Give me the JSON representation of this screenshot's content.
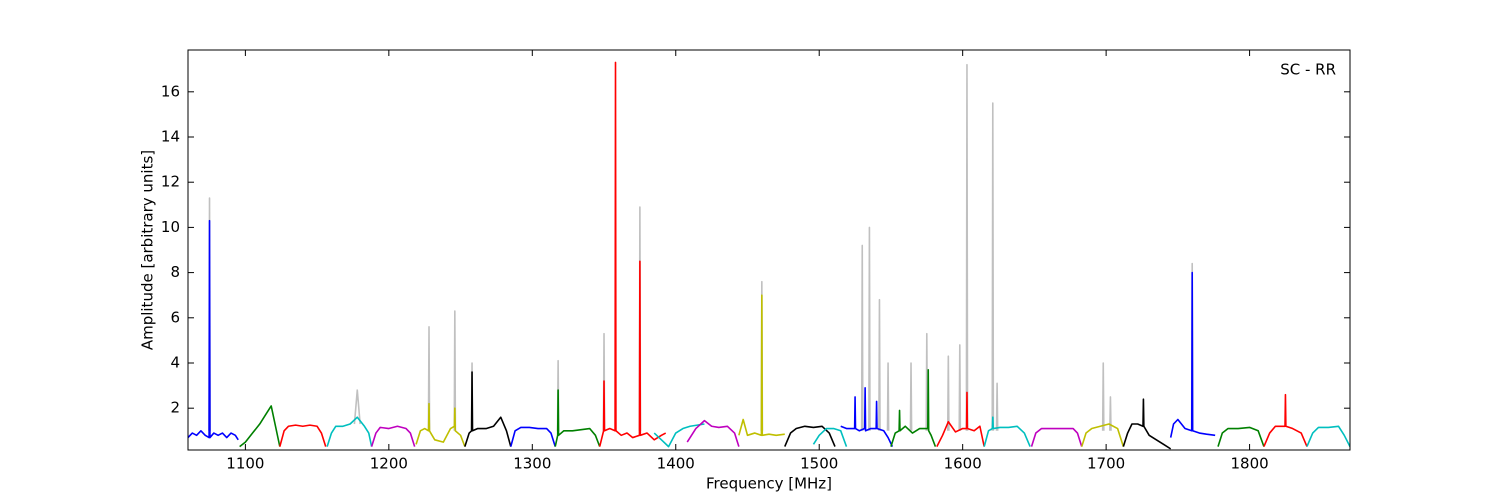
{
  "chart_data": {
    "type": "line",
    "xlabel": "Frequency [MHz]",
    "ylabel": "Amplitude [arbitrary units]",
    "annotation": "SC - RR",
    "xlim": [
      1060,
      1870
    ],
    "ylim": [
      0.15,
      17.85
    ],
    "xticks": [
      1100,
      1200,
      1300,
      1400,
      1500,
      1600,
      1700,
      1800
    ],
    "yticks": [
      2,
      4,
      6,
      8,
      10,
      12,
      14,
      16
    ],
    "grid": false,
    "series": [
      {
        "color": "#c0c0c0",
        "x": [
          1074.6,
          1075,
          1075.4,
          null,
          1176,
          1178,
          1180,
          null,
          1227.6,
          1228,
          1228.4,
          null,
          1245.6,
          1246,
          1246.4,
          null,
          1257.6,
          1258,
          1258.4,
          null,
          1317.6,
          1318,
          1318.4,
          null,
          1349.6,
          1350,
          1350.4,
          null,
          1374.6,
          1375,
          1375.4,
          null,
          1459.6,
          1460,
          1460.4,
          null,
          1529.6,
          1530,
          1530.4,
          null,
          1534.6,
          1535,
          1535.4,
          null,
          1541.6,
          1542,
          1542.4,
          null,
          1547.6,
          1548,
          1548.4,
          null,
          1563.6,
          1564,
          1564.4,
          null,
          1574.6,
          1575,
          1575.4,
          null,
          1589.6,
          1590,
          1590.4,
          null,
          1597.6,
          1598,
          1598.4,
          null,
          1602.6,
          1603,
          1603.4,
          null,
          1620.6,
          1621,
          1621.4,
          null,
          1623.6,
          1624,
          1624.4,
          null,
          1697.6,
          1698,
          1698.4,
          null,
          1702.6,
          1703,
          1703.4,
          null,
          1759.6,
          1760,
          1760.4
        ],
        "values": [
          1.0,
          11.3,
          1.0,
          null,
          1.3,
          2.8,
          1.3,
          null,
          1.0,
          5.6,
          1.0,
          null,
          1.0,
          6.3,
          1.0,
          null,
          1.0,
          4.0,
          1.0,
          null,
          1.0,
          4.1,
          1.0,
          null,
          1.0,
          5.3,
          1.0,
          null,
          1.0,
          10.9,
          1.0,
          null,
          1.0,
          7.6,
          1.0,
          null,
          1.0,
          9.2,
          1.0,
          null,
          1.0,
          10.0,
          1.0,
          null,
          1.0,
          6.8,
          1.0,
          null,
          1.0,
          4.0,
          1.0,
          null,
          1.0,
          4.0,
          1.0,
          null,
          1.0,
          5.3,
          1.0,
          null,
          1.0,
          4.3,
          1.0,
          null,
          1.0,
          4.8,
          1.0,
          null,
          1.0,
          17.2,
          1.0,
          null,
          1.0,
          15.5,
          1.0,
          null,
          1.0,
          3.1,
          1.0,
          null,
          1.0,
          4.0,
          1.0,
          null,
          1.0,
          2.5,
          1.0,
          null,
          1.0,
          8.4,
          1.0
        ]
      },
      {
        "color": "#0000ff",
        "x": [
          1060,
          1063,
          1066,
          1069,
          1072,
          1074.7,
          1075,
          1075.3,
          1078,
          1081,
          1084,
          1087,
          1090,
          1093,
          1095
        ],
        "values": [
          0.7,
          0.9,
          0.8,
          1.0,
          0.8,
          0.7,
          10.3,
          0.7,
          0.9,
          0.8,
          0.9,
          0.7,
          0.9,
          0.8,
          0.6
        ]
      },
      {
        "color": "#008000",
        "x": [
          1096,
          1100,
          1105,
          1110,
          1114,
          1118,
          1121,
          1124
        ],
        "values": [
          0.3,
          0.5,
          0.9,
          1.3,
          1.7,
          2.1,
          1.2,
          0.3
        ]
      },
      {
        "color": "#ff0000",
        "x": [
          1124,
          1127,
          1130,
          1135,
          1140,
          1145,
          1150,
          1153,
          1156
        ],
        "values": [
          0.3,
          1.0,
          1.2,
          1.25,
          1.2,
          1.25,
          1.2,
          0.9,
          0.3
        ]
      },
      {
        "color": "#00bfbf",
        "x": [
          1157,
          1160,
          1163,
          1168,
          1173,
          1178,
          1183,
          1186,
          1188
        ],
        "values": [
          0.3,
          0.9,
          1.2,
          1.2,
          1.3,
          1.6,
          1.2,
          0.9,
          0.3
        ]
      },
      {
        "color": "#bf00bf",
        "x": [
          1188,
          1191,
          1194,
          1200,
          1206,
          1212,
          1215,
          1218
        ],
        "values": [
          0.3,
          0.9,
          1.15,
          1.1,
          1.2,
          1.1,
          0.9,
          0.3
        ]
      },
      {
        "color": "#bfbf00",
        "x": [
          1219,
          1222,
          1225,
          1227.7,
          1228,
          1228.3,
          1232,
          1238,
          1243,
          1245.7,
          1246,
          1246.3,
          1250,
          1253
        ],
        "values": [
          0.4,
          1.0,
          1.1,
          1.0,
          2.2,
          1.0,
          0.6,
          0.5,
          1.1,
          1.2,
          2.0,
          1.0,
          0.8,
          0.3
        ]
      },
      {
        "color": "#000000",
        "x": [
          1253,
          1256,
          1257.7,
          1258,
          1258.3,
          1262,
          1268,
          1273,
          1278,
          1282,
          1285
        ],
        "values": [
          0.3,
          0.9,
          1.0,
          3.6,
          1.0,
          1.1,
          1.1,
          1.2,
          1.6,
          1.0,
          0.3
        ]
      },
      {
        "color": "#0000ff",
        "x": [
          1285,
          1288,
          1292,
          1298,
          1304,
          1310,
          1313,
          1316
        ],
        "values": [
          0.3,
          1.0,
          1.15,
          1.15,
          1.1,
          1.1,
          0.9,
          0.3
        ]
      },
      {
        "color": "#008000",
        "x": [
          1316,
          1317.7,
          1318,
          1318.3,
          1322,
          1328,
          1334,
          1340,
          1344,
          1347
        ],
        "values": [
          0.3,
          0.8,
          2.8,
          0.8,
          1.0,
          1.0,
          1.05,
          1.1,
          0.8,
          0.3
        ]
      },
      {
        "color": "#ff0000",
        "x": [
          1347,
          1349.7,
          1350,
          1350.3,
          1354,
          1357.7,
          1358,
          1358.3,
          1362,
          1366,
          1370,
          1374.7,
          1375,
          1375.3,
          1380,
          1385,
          1390,
          1393
        ],
        "values": [
          0.3,
          1.0,
          3.2,
          1.0,
          1.1,
          1.0,
          17.3,
          1.0,
          0.8,
          0.9,
          0.7,
          0.8,
          8.5,
          0.8,
          0.9,
          0.6,
          0.8,
          0.9
        ]
      },
      {
        "color": "#00bfbf",
        "x": [
          1385,
          1390,
          1395,
          1400,
          1405,
          1410,
          1415,
          1420
        ],
        "values": [
          0.9,
          0.6,
          0.3,
          0.9,
          1.1,
          1.2,
          1.25,
          1.3
        ]
      },
      {
        "color": "#bf00bf",
        "x": [
          1408,
          1414,
          1420,
          1425,
          1430,
          1436,
          1441,
          1444
        ],
        "values": [
          0.5,
          1.1,
          1.45,
          1.2,
          1.15,
          1.2,
          0.9,
          0.3
        ]
      },
      {
        "color": "#bfbf00",
        "x": [
          1444,
          1447,
          1450,
          1455,
          1459.7,
          1460,
          1460.3,
          1465,
          1470,
          1476
        ],
        "values": [
          0.8,
          1.5,
          0.8,
          0.9,
          0.8,
          7.0,
          0.8,
          0.85,
          0.8,
          0.85
        ]
      },
      {
        "color": "#000000",
        "x": [
          1476,
          1480,
          1484,
          1490,
          1496,
          1502,
          1507,
          1511
        ],
        "values": [
          0.3,
          0.9,
          1.1,
          1.2,
          1.15,
          1.2,
          0.9,
          0.3
        ]
      },
      {
        "color": "#00bfbf",
        "x": [
          1496,
          1500,
          1505,
          1510,
          1515,
          1519
        ],
        "values": [
          0.4,
          0.8,
          1.1,
          1.1,
          1.0,
          0.3
        ]
      },
      {
        "color": "#0000ff",
        "x": [
          1515,
          1519,
          1524.7,
          1525,
          1525.3,
          1528,
          1531.7,
          1532,
          1532.3,
          1536,
          1539.7,
          1540,
          1540.3,
          1545,
          1548,
          1551
        ],
        "values": [
          1.2,
          1.1,
          1.1,
          2.5,
          1.1,
          1.0,
          1.1,
          2.9,
          1.0,
          1.1,
          1.1,
          2.3,
          1.1,
          1.0,
          0.7,
          0.3
        ]
      },
      {
        "color": "#008000",
        "x": [
          1550,
          1553,
          1555.7,
          1556,
          1556.3,
          1560,
          1565,
          1570,
          1575.7,
          1576,
          1576.3,
          1578,
          1581
        ],
        "values": [
          0.3,
          0.9,
          1.0,
          1.9,
          1.0,
          1.2,
          0.9,
          1.1,
          1.1,
          3.7,
          1.0,
          0.8,
          0.3
        ]
      },
      {
        "color": "#ff0000",
        "x": [
          1582,
          1586,
          1590,
          1595,
          1600,
          1602.7,
          1603,
          1603.3,
          1608,
          1612,
          1615
        ],
        "values": [
          0.3,
          0.8,
          1.4,
          0.95,
          1.1,
          1.1,
          2.7,
          1.1,
          1.0,
          1.2,
          0.3
        ]
      },
      {
        "color": "#00bfbf",
        "x": [
          1615,
          1618,
          1620.7,
          1621,
          1621.3,
          1626,
          1632,
          1638,
          1643,
          1647
        ],
        "values": [
          0.3,
          1.0,
          1.1,
          1.6,
          1.1,
          1.15,
          1.15,
          1.2,
          0.9,
          0.3
        ]
      },
      {
        "color": "#bf00bf",
        "x": [
          1648,
          1651,
          1655,
          1662,
          1670,
          1677,
          1680,
          1683
        ],
        "values": [
          0.3,
          0.9,
          1.1,
          1.1,
          1.1,
          1.1,
          0.9,
          0.3
        ]
      },
      {
        "color": "#bfbf00",
        "x": [
          1683,
          1686,
          1690,
          1696,
          1702,
          1708,
          1712
        ],
        "values": [
          0.3,
          0.9,
          1.1,
          1.2,
          1.3,
          1.1,
          0.3
        ]
      },
      {
        "color": "#000000",
        "x": [
          1712,
          1715,
          1718,
          1722,
          1725.7,
          1726,
          1726.3,
          1730,
          1735,
          1740,
          1745
        ],
        "values": [
          0.3,
          0.9,
          1.3,
          1.3,
          1.2,
          2.4,
          1.2,
          0.8,
          0.6,
          0.4,
          0.2
        ]
      },
      {
        "color": "#0000ff",
        "x": [
          1745,
          1747,
          1750,
          1755,
          1759.7,
          1760,
          1760.3,
          1765,
          1770,
          1776
        ],
        "values": [
          0.7,
          1.3,
          1.5,
          1.1,
          1.0,
          8.0,
          1.0,
          0.9,
          0.85,
          0.8
        ]
      },
      {
        "color": "#008000",
        "x": [
          1778,
          1781,
          1785,
          1792,
          1800,
          1806,
          1810
        ],
        "values": [
          0.3,
          0.9,
          1.1,
          1.1,
          1.15,
          1.0,
          0.3
        ]
      },
      {
        "color": "#ff0000",
        "x": [
          1810,
          1814,
          1818,
          1824.7,
          1825,
          1825.3,
          1830,
          1836,
          1840
        ],
        "values": [
          0.3,
          0.9,
          1.2,
          1.2,
          2.6,
          1.2,
          1.1,
          0.9,
          0.3
        ]
      },
      {
        "color": "#00bfbf",
        "x": [
          1840,
          1844,
          1848,
          1855,
          1862,
          1866,
          1870
        ],
        "values": [
          0.3,
          0.9,
          1.15,
          1.15,
          1.2,
          0.8,
          0.3
        ]
      }
    ]
  }
}
